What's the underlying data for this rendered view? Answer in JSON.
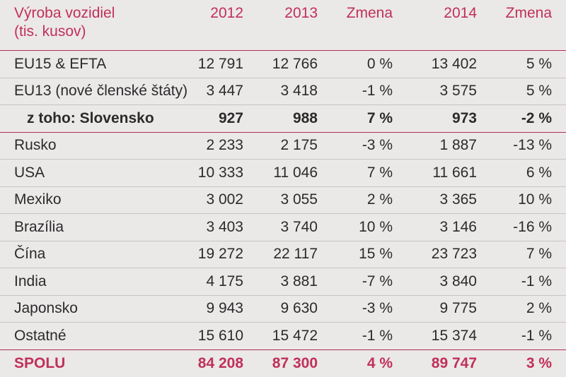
{
  "header": {
    "col0_line1": "Výroba vozidiel",
    "col0_line2": "(tis. kusov)",
    "col1": "2012",
    "col2": "2013",
    "col3": "Zmena",
    "col4": "2014",
    "col5": "Zmena"
  },
  "rows": [
    {
      "label": "EU15 & EFTA",
      "v2012": "12 791",
      "v2013": "12 766",
      "chg1": "0 %",
      "v2014": "13 402",
      "chg2": "5 %"
    },
    {
      "label": "EU13 (nové členské štáty)",
      "v2012": "3 447",
      "v2013": "3 418",
      "chg1": "-1 %",
      "v2014": "3 575",
      "chg2": "5 %"
    },
    {
      "label": "z toho: Slovensko",
      "v2012": "927",
      "v2013": "988",
      "chg1": "7 %",
      "v2014": "973",
      "chg2": "-2 %"
    },
    {
      "label": "Rusko",
      "v2012": "2 233",
      "v2013": "2 175",
      "chg1": "-3 %",
      "v2014": "1 887",
      "chg2": "-13 %"
    },
    {
      "label": "USA",
      "v2012": "10 333",
      "v2013": "11 046",
      "chg1": "7 %",
      "v2014": "11 661",
      "chg2": "6 %"
    },
    {
      "label": "Mexiko",
      "v2012": "3 002",
      "v2013": "3 055",
      "chg1": "2 %",
      "v2014": "3 365",
      "chg2": "10 %"
    },
    {
      "label": "Brazília",
      "v2012": "3 403",
      "v2013": "3 740",
      "chg1": "10 %",
      "v2014": "3 146",
      "chg2": "-16 %"
    },
    {
      "label": "Čína",
      "v2012": "19 272",
      "v2013": "22 117",
      "chg1": "15 %",
      "v2014": "23 723",
      "chg2": "7 %"
    },
    {
      "label": "India",
      "v2012": "4 175",
      "v2013": "3 881",
      "chg1": "-7 %",
      "v2014": "3 840",
      "chg2": "-1 %"
    },
    {
      "label": "Japonsko",
      "v2012": "9 943",
      "v2013": "9 630",
      "chg1": "-3 %",
      "v2014": "9 775",
      "chg2": "2 %"
    },
    {
      "label": "Ostatné",
      "v2012": "15 610",
      "v2013": "15 472",
      "chg1": "-1 %",
      "v2014": "15 374",
      "chg2": "-1 %"
    },
    {
      "label": "SPOLU",
      "v2012": "84 208",
      "v2013": "87 300",
      "chg1": "4 %",
      "v2014": "89 747",
      "chg2": "3 %"
    }
  ],
  "colors": {
    "accent": "#c0305a",
    "background": "#ebe8e8",
    "text": "#2b2b2b"
  }
}
